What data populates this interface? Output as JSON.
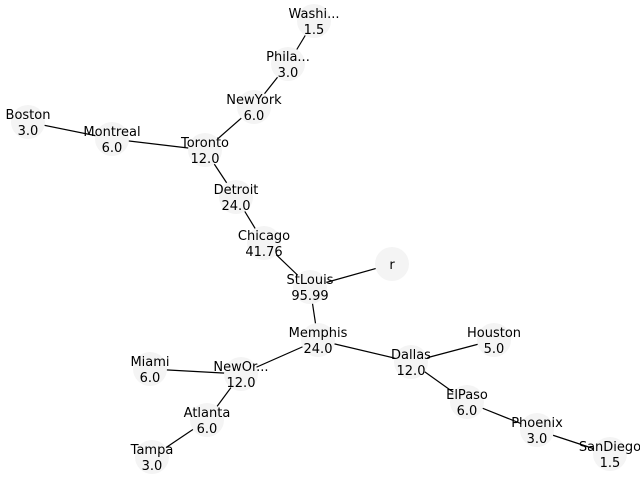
{
  "nodes": [
    {
      "id": "washington",
      "name": "Washi...",
      "value": "1.5"
    },
    {
      "id": "philadelphia",
      "name": "Phila...",
      "value": "3.0"
    },
    {
      "id": "newyork",
      "name": "NewYork",
      "value": "6.0"
    },
    {
      "id": "boston",
      "name": "Boston",
      "value": "3.0"
    },
    {
      "id": "montreal",
      "name": "Montreal",
      "value": "6.0"
    },
    {
      "id": "toronto",
      "name": "Toronto",
      "value": "12.0"
    },
    {
      "id": "detroit",
      "name": "Detroit",
      "value": "24.0"
    },
    {
      "id": "chicago",
      "name": "Chicago",
      "value": "41.76"
    },
    {
      "id": "stlouis",
      "name": "StLouis",
      "value": "95.99"
    },
    {
      "id": "r",
      "name": "r",
      "value": ""
    },
    {
      "id": "memphis",
      "name": "Memphis",
      "value": "24.0"
    },
    {
      "id": "houston",
      "name": "Houston",
      "value": "5.0"
    },
    {
      "id": "dallas",
      "name": "Dallas",
      "value": "12.0"
    },
    {
      "id": "miami",
      "name": "Miami",
      "value": "6.0"
    },
    {
      "id": "neworleans",
      "name": "NewOr...",
      "value": "12.0"
    },
    {
      "id": "elpaso",
      "name": "ElPaso",
      "value": "6.0"
    },
    {
      "id": "atlanta",
      "name": "Atlanta",
      "value": "6.0"
    },
    {
      "id": "phoenix",
      "name": "Phoenix",
      "value": "3.0"
    },
    {
      "id": "tampa",
      "name": "Tampa",
      "value": "3.0"
    },
    {
      "id": "sandiego",
      "name": "SanDiego",
      "value": "1.5"
    }
  ],
  "edges": [
    [
      "washington",
      "philadelphia"
    ],
    [
      "philadelphia",
      "newyork"
    ],
    [
      "newyork",
      "toronto"
    ],
    [
      "boston",
      "montreal"
    ],
    [
      "montreal",
      "toronto"
    ],
    [
      "toronto",
      "detroit"
    ],
    [
      "detroit",
      "chicago"
    ],
    [
      "chicago",
      "stlouis"
    ],
    [
      "stlouis",
      "r"
    ],
    [
      "stlouis",
      "memphis"
    ],
    [
      "memphis",
      "neworleans"
    ],
    [
      "memphis",
      "dallas"
    ],
    [
      "dallas",
      "houston"
    ],
    [
      "dallas",
      "elpaso"
    ],
    [
      "elpaso",
      "phoenix"
    ],
    [
      "phoenix",
      "sandiego"
    ],
    [
      "neworleans",
      "miami"
    ],
    [
      "neworleans",
      "atlanta"
    ],
    [
      "atlanta",
      "tampa"
    ]
  ]
}
